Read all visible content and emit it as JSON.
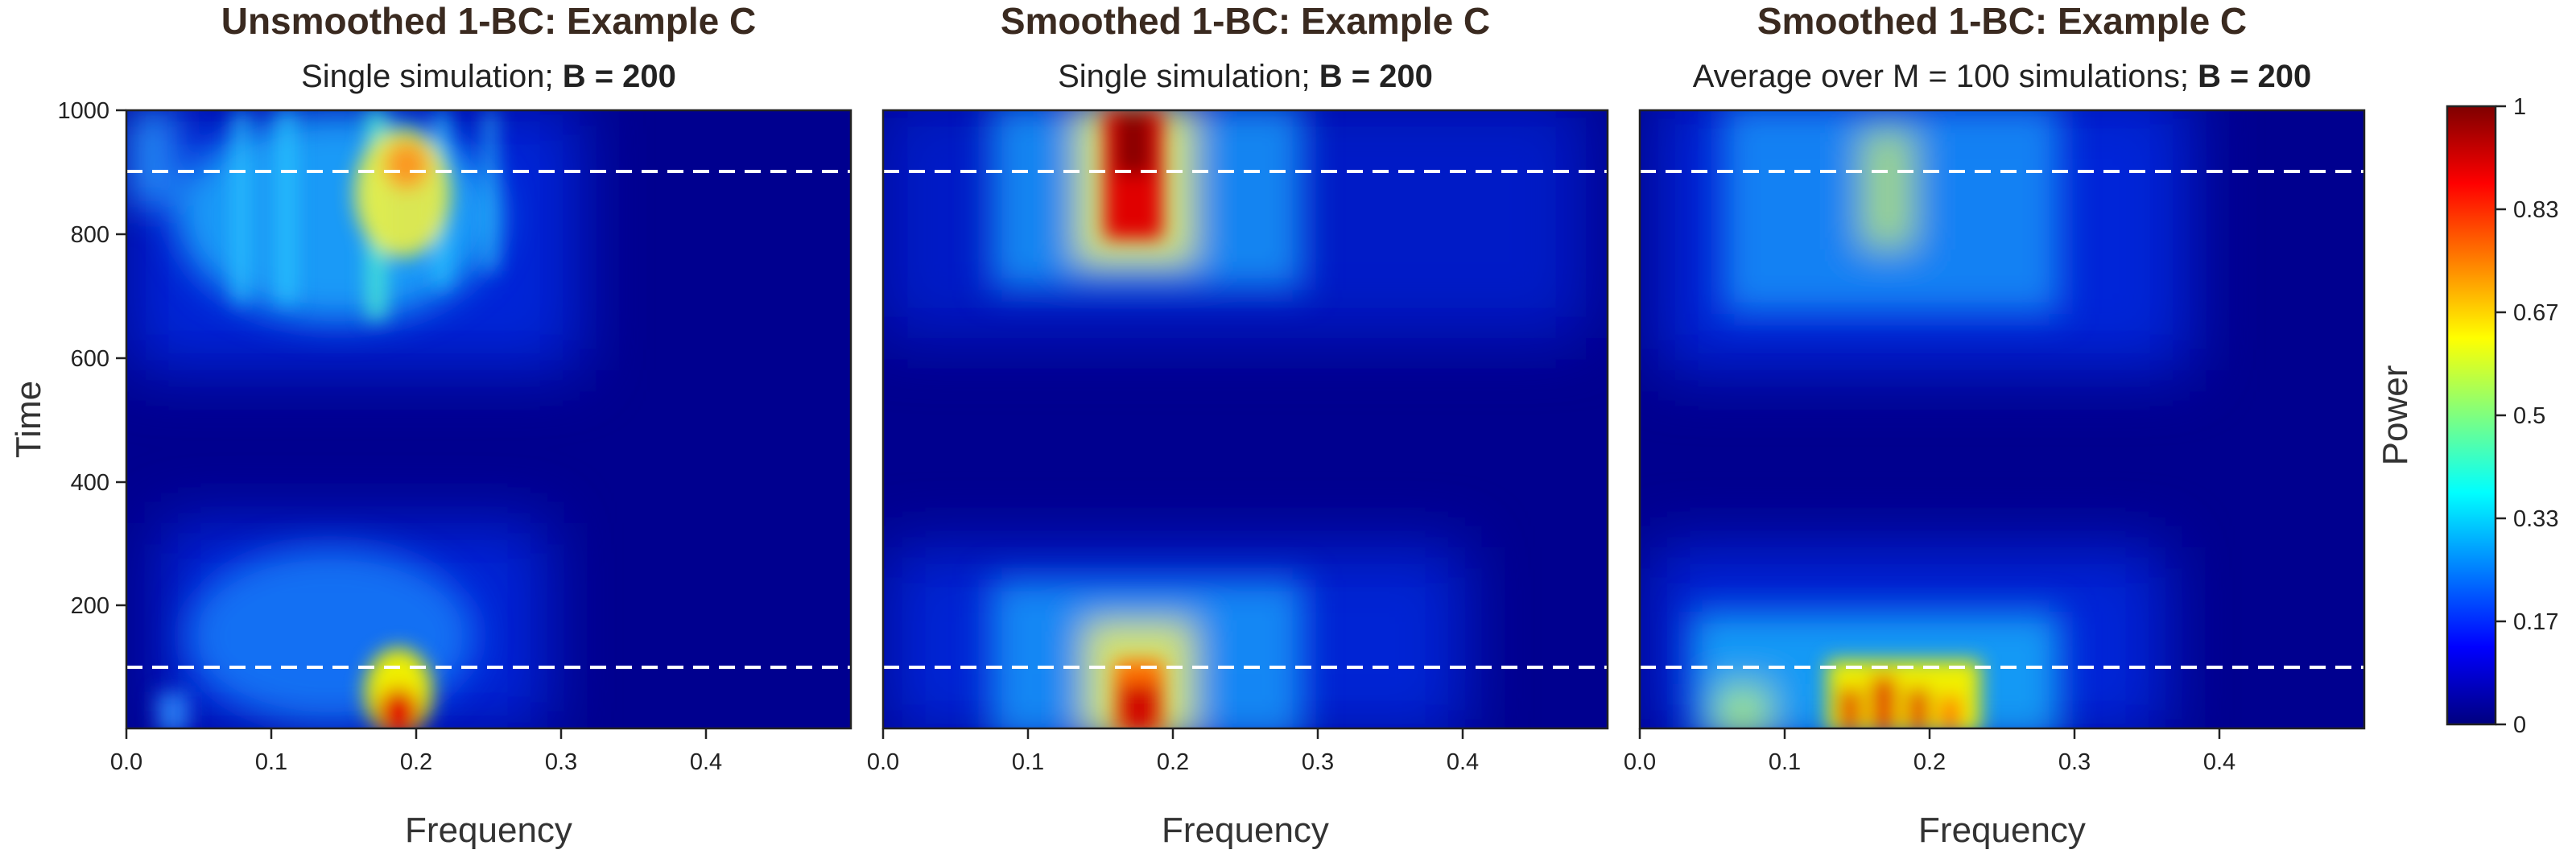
{
  "chart_data": [
    {
      "type": "heatmap",
      "title": "Unsmoothed 1-BC: Example C",
      "subtitle_plain": "Single simulation; ",
      "subtitle_bold": "B = 200",
      "xlabel": "Frequency",
      "ylabel": "Time",
      "xlim": [
        0,
        0.5
      ],
      "ylim": [
        1,
        1000
      ],
      "xticks": [
        "0.0",
        "0.1",
        "0.2",
        "0.3",
        "0.4"
      ],
      "yticks": [
        "200",
        "400",
        "600",
        "800",
        "1000"
      ],
      "reference_lines_time": [
        100,
        900
      ],
      "hotspots": [
        {
          "time": 30,
          "frequency": 0.19,
          "power": 1.0
        },
        {
          "time": 880,
          "frequency": 0.19,
          "power": 0.67
        },
        {
          "time": 150,
          "frequency": 0.15,
          "power": 0.3
        }
      ]
    },
    {
      "type": "heatmap",
      "title": "Smoothed 1-BC: Example C",
      "subtitle_plain": "Single simulation; ",
      "subtitle_bold": "B = 200",
      "xlabel": "Frequency",
      "ylabel": "",
      "xlim": [
        0,
        0.5
      ],
      "ylim": [
        1,
        1000
      ],
      "xticks": [
        "0.0",
        "0.1",
        "0.2",
        "0.3",
        "0.4"
      ],
      "yticks": [],
      "reference_lines_time": [
        100,
        900
      ],
      "hotspots": [
        {
          "time": 920,
          "frequency": 0.19,
          "power": 1.0
        },
        {
          "time": 40,
          "frequency": 0.19,
          "power": 0.95
        }
      ]
    },
    {
      "type": "heatmap",
      "title": "Smoothed 1-BC: Example C",
      "subtitle_plain": "Average over M = 100 simulations; ",
      "subtitle_bold": "B = 200",
      "xlabel": "Frequency",
      "ylabel": "",
      "xlim": [
        0,
        0.5
      ],
      "ylim": [
        1,
        1000
      ],
      "xticks": [
        "0.0",
        "0.1",
        "0.2",
        "0.3",
        "0.4"
      ],
      "yticks": [],
      "reference_lines_time": [
        100,
        900
      ],
      "hotspots": [
        {
          "time": 40,
          "frequency": 0.16,
          "power": 0.85
        },
        {
          "time": 880,
          "frequency": 0.19,
          "power": 0.6
        }
      ]
    }
  ],
  "colorbar": {
    "label": "Power",
    "ticks": [
      "0",
      "0.17",
      "0.33",
      "0.5",
      "0.67",
      "0.83",
      "1"
    ],
    "range": [
      0,
      1
    ],
    "colormap": [
      "#00007f",
      "#0000ff",
      "#007fff",
      "#00ffff",
      "#7fff7f",
      "#ffff00",
      "#ff7f00",
      "#ff0000",
      "#7f0000"
    ]
  }
}
